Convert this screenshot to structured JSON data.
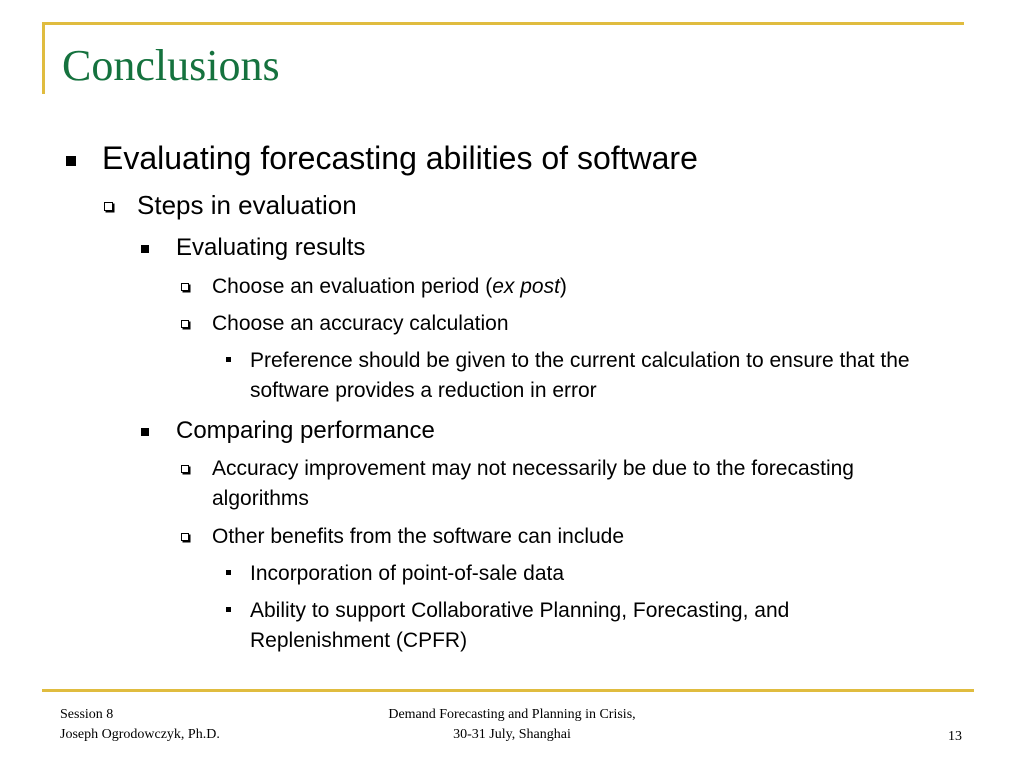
{
  "slide": {
    "title": "Conclusions",
    "bullets": [
      {
        "text": "Evaluating forecasting abilities of software"
      },
      {
        "text": "Steps in evaluation"
      },
      {
        "text": "Evaluating results"
      },
      {
        "text_before": "Choose an evaluation period (",
        "text_italic": "ex post",
        "text_after": ")"
      },
      {
        "text": "Choose an accuracy calculation"
      },
      {
        "text": "Preference should be given to the current calculation to ensure that the software provides a reduction in error"
      },
      {
        "text": "Comparing performance"
      },
      {
        "text": "Accuracy improvement may not necessarily be due to the forecasting algorithms"
      },
      {
        "text": "Other benefits from the software can include"
      },
      {
        "text": "Incorporation of point-of-sale data"
      },
      {
        "text": "Ability to support Collaborative Planning, Forecasting, and Replenishment (CPFR)"
      }
    ]
  },
  "footer": {
    "left_line1": "Session 8",
    "left_line2": "Joseph Ogrodowczyk, Ph.D.",
    "center_line1": "Demand Forecasting and Planning in Crisis,",
    "center_line2": "30-31 July, Shanghai",
    "page_number": "13"
  },
  "colors": {
    "title": "#15723e",
    "accent_rule": "#e0bc3f",
    "text": "#000000",
    "background": "#ffffff"
  }
}
